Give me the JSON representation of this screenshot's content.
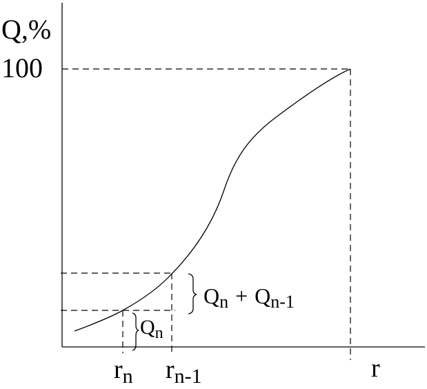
{
  "y_axis_label": "Q,%",
  "y_level": "100",
  "x_axis_label": "r",
  "r_n": {
    "base": "r",
    "sub": "n"
  },
  "r_n_minus_1": {
    "base": "r",
    "sub": "n-1"
  },
  "q_n": {
    "base": "Q",
    "sub": "n"
  },
  "q_sum": {
    "base1": "Q",
    "sub1": "n",
    "plus": "+",
    "base2": "Q",
    "sub2": "n-1"
  }
}
